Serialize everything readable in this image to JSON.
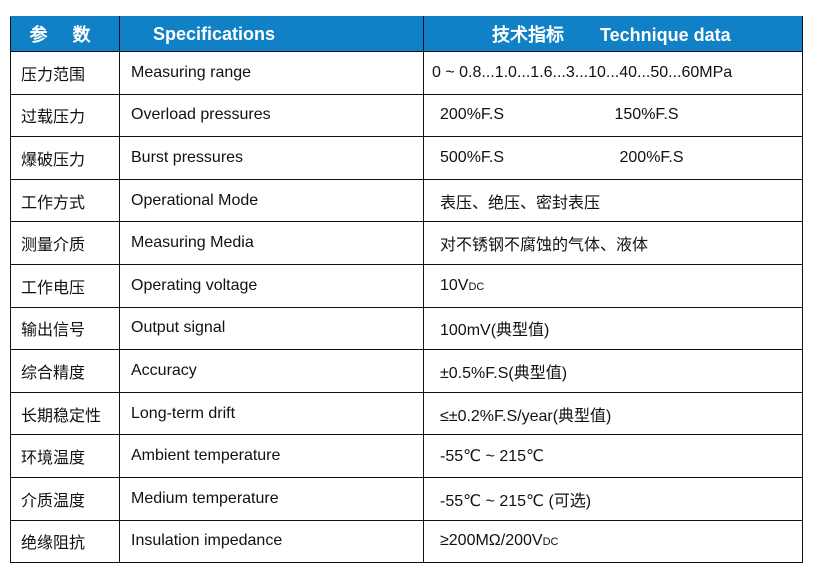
{
  "header": {
    "param": "参 数",
    "spec": "Specifications",
    "tech_cn": "技术指标",
    "tech_en": "Technique data"
  },
  "header_color": "#1081c6",
  "rows": [
    {
      "cn": "压力范围",
      "en": "Measuring range",
      "value": "0 ~ 0.8...1.0...1.6...3...10...40...50...60MPa"
    },
    {
      "cn": "过载压力",
      "en": "Overload pressures",
      "value": "200%F.S",
      "value2": "150%F.S"
    },
    {
      "cn": "爆破压力",
      "en": "Burst pressures",
      "value": "500%F.S",
      "value2": "200%F.S"
    },
    {
      "cn": "工作方式",
      "en": "Operational Mode",
      "value": "表压、绝压、密封表压"
    },
    {
      "cn": "测量介质",
      "en": "Measuring Media",
      "value": "对不锈钢不腐蚀的气体、液体"
    },
    {
      "cn": "工作电压",
      "en": "Operating voltage",
      "value": "10V",
      "sub": "DC"
    },
    {
      "cn": "输出信号",
      "en": "Output signal",
      "value": "100mV(典型值)"
    },
    {
      "cn": "综合精度",
      "en": "Accuracy",
      "value": "±0.5%F.S(典型值)"
    },
    {
      "cn": "长期稳定性",
      "en": "Long-term drift",
      "value": "≤±0.2%F.S/year(典型值)"
    },
    {
      "cn": "环境温度",
      "en": "Ambient temperature",
      "value": "-55℃ ~ 215℃"
    },
    {
      "cn": "介质温度",
      "en": "Medium temperature",
      "value": "-55℃ ~ 215℃ (可选)"
    },
    {
      "cn": "绝缘阻抗",
      "en": "Insulation impedance",
      "value": "≥200MΩ/200V",
      "sub": "DC"
    }
  ]
}
